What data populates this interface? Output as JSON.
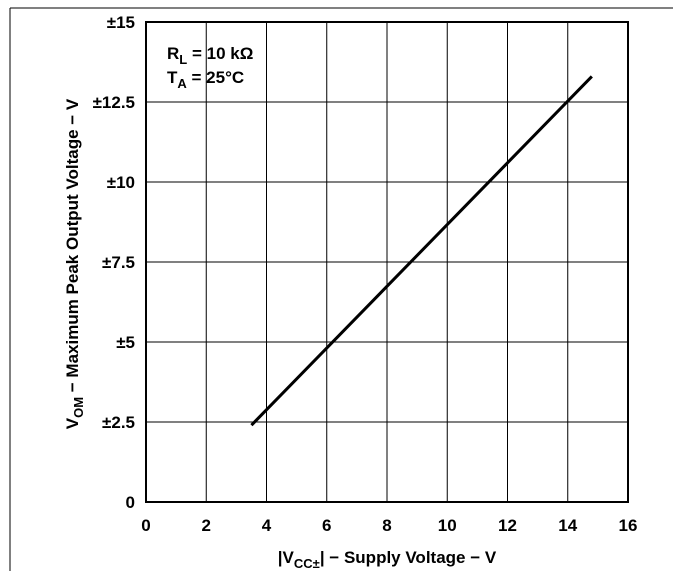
{
  "chart_data": {
    "type": "line",
    "title": "",
    "xlabel": {
      "pre": "|V",
      "sub": "CC±",
      "post": "| − Supply Voltage − V"
    },
    "ylabel": {
      "pre": "V",
      "sub": "OM",
      "post": " − Maximum Peak Output Voltage − V"
    },
    "xlim": [
      0,
      16
    ],
    "ylim": [
      0,
      15
    ],
    "x_ticks": [
      0,
      2,
      4,
      6,
      8,
      10,
      12,
      14,
      16
    ],
    "x_tick_labels": [
      "0",
      "2",
      "4",
      "6",
      "8",
      "10",
      "12",
      "14",
      "16"
    ],
    "y_ticks": [
      0,
      2.5,
      5,
      7.5,
      10,
      12.5,
      15
    ],
    "y_tick_labels": [
      "0",
      "±2.5",
      "±5",
      "±7.5",
      "±10",
      "±12.5",
      "±15"
    ],
    "grid": true,
    "annotations": [
      {
        "pre": "R",
        "sub": "L",
        "post": " = 10 kΩ"
      },
      {
        "pre": "T",
        "sub": "A",
        "post": " = 25°C"
      }
    ],
    "series": [
      {
        "x": [
          3.5,
          14.8
        ],
        "y": [
          2.4,
          13.3
        ]
      }
    ]
  }
}
